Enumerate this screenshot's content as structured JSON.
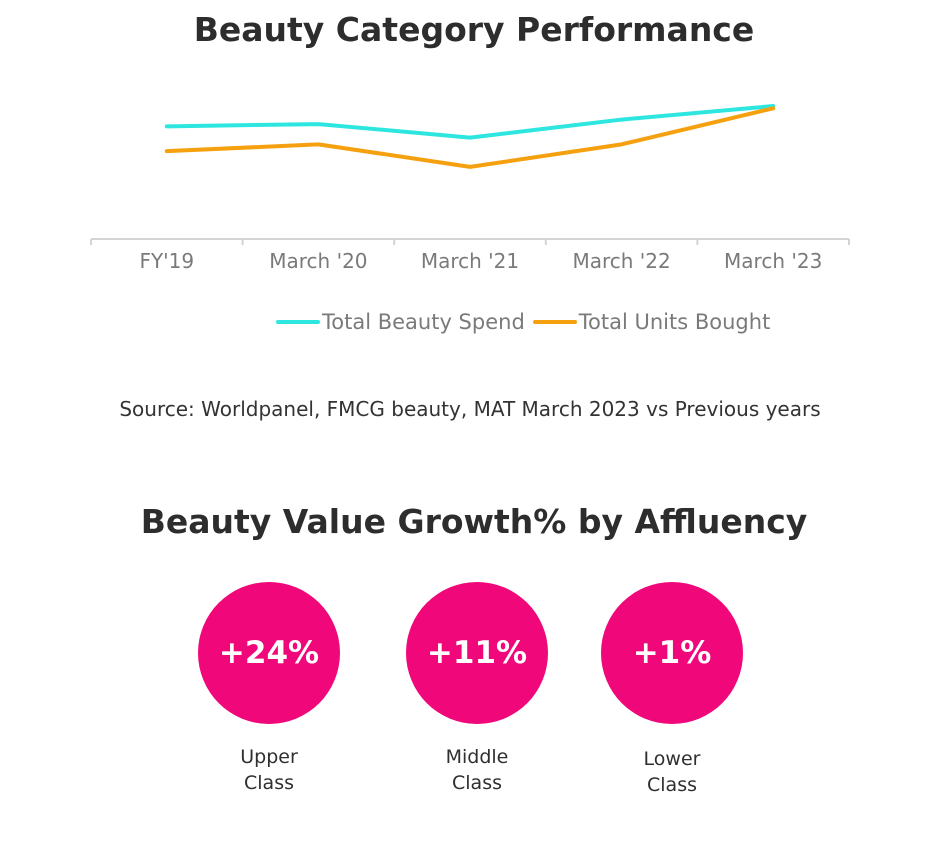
{
  "chart_data": {
    "type": "line",
    "title": "Beauty Category Performance",
    "categories": [
      "FY'19",
      "March '20",
      "March '21",
      "March '22",
      "March '23"
    ],
    "series": [
      {
        "name": "Total Beauty Spend",
        "color": "#2ee6e0",
        "values": [
          100,
          101,
          95,
          103,
          109
        ]
      },
      {
        "name": "Total Units Bought",
        "color": "#f5a00f",
        "values": [
          89,
          92,
          82,
          92,
          108
        ]
      }
    ],
    "ylim": [
      50,
      125
    ],
    "yaxis_visible": false,
    "grid": false,
    "legend_position": "bottom-right"
  },
  "source_note": "Source: Worldpanel, FMCG beauty, MAT March 2023 vs Previous years",
  "growth": {
    "title": "Beauty Value Growth% by Affluency",
    "color": "#f0077a",
    "items": [
      {
        "value": "+24%",
        "label_line1": "Upper",
        "label_line2": "Class"
      },
      {
        "value": "+11%",
        "label_line1": "Middle",
        "label_line2": "Class"
      },
      {
        "value": "+1%",
        "label_line1": "Lower",
        "label_line2": "Class"
      }
    ]
  }
}
